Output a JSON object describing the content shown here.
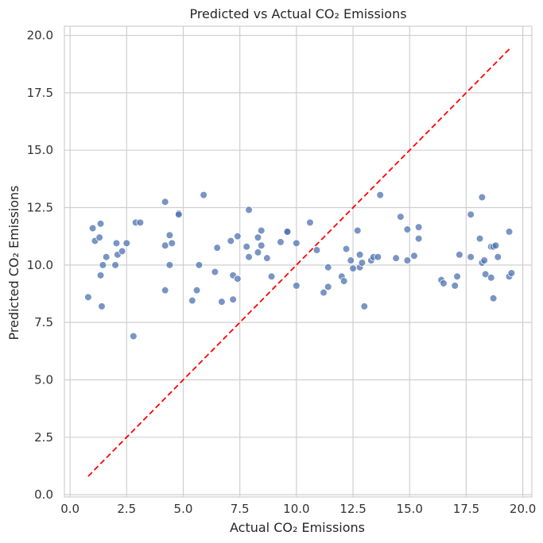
{
  "chart_data": {
    "type": "scatter",
    "title": "Predicted vs Actual CO₂ Emissions",
    "xlabel": "Actual CO₂ Emissions",
    "ylabel": "Predicted CO₂ Emissions",
    "xlim": [
      -0.25,
      20.4
    ],
    "ylim": [
      -0.1,
      20.4
    ],
    "xticks": [
      0.0,
      2.5,
      5.0,
      7.5,
      10.0,
      12.5,
      15.0,
      17.5,
      20.0
    ],
    "yticks": [
      0.0,
      2.5,
      5.0,
      7.5,
      10.0,
      12.5,
      15.0,
      17.5,
      20.0
    ],
    "xtick_labels": [
      "0.0",
      "2.5",
      "5.0",
      "7.5",
      "10.0",
      "12.5",
      "15.0",
      "17.5",
      "20.0"
    ],
    "ytick_labels": [
      "0.0",
      "2.5",
      "5.0",
      "7.5",
      "10.0",
      "12.5",
      "15.0",
      "17.5",
      "20.0"
    ],
    "grid": true,
    "point_color": "#4c72b0",
    "reference_line": {
      "x": [
        0.8,
        19.5
      ],
      "y": [
        0.8,
        19.5
      ],
      "color": "#ff0000",
      "style": "dashed"
    },
    "points": [
      {
        "x": 0.8,
        "y": 8.6
      },
      {
        "x": 1.0,
        "y": 11.6
      },
      {
        "x": 1.1,
        "y": 11.05
      },
      {
        "x": 1.3,
        "y": 11.2
      },
      {
        "x": 1.35,
        "y": 11.8
      },
      {
        "x": 1.35,
        "y": 9.55
      },
      {
        "x": 1.4,
        "y": 8.2
      },
      {
        "x": 1.45,
        "y": 10.0
      },
      {
        "x": 1.6,
        "y": 10.35
      },
      {
        "x": 2.0,
        "y": 10.0
      },
      {
        "x": 2.05,
        "y": 10.95
      },
      {
        "x": 2.1,
        "y": 10.45
      },
      {
        "x": 2.3,
        "y": 10.6
      },
      {
        "x": 2.5,
        "y": 10.95
      },
      {
        "x": 2.8,
        "y": 6.9
      },
      {
        "x": 2.9,
        "y": 11.85
      },
      {
        "x": 3.1,
        "y": 11.85
      },
      {
        "x": 4.2,
        "y": 12.75
      },
      {
        "x": 4.2,
        "y": 10.85
      },
      {
        "x": 4.2,
        "y": 8.9
      },
      {
        "x": 4.4,
        "y": 11.3
      },
      {
        "x": 4.4,
        "y": 10.0
      },
      {
        "x": 4.5,
        "y": 10.95
      },
      {
        "x": 4.8,
        "y": 12.25
      },
      {
        "x": 4.8,
        "y": 12.2
      },
      {
        "x": 5.4,
        "y": 8.45
      },
      {
        "x": 5.6,
        "y": 8.9
      },
      {
        "x": 5.7,
        "y": 10.0
      },
      {
        "x": 5.9,
        "y": 13.05
      },
      {
        "x": 6.4,
        "y": 9.7
      },
      {
        "x": 6.5,
        "y": 10.75
      },
      {
        "x": 6.7,
        "y": 8.4
      },
      {
        "x": 7.1,
        "y": 11.05
      },
      {
        "x": 7.2,
        "y": 9.55
      },
      {
        "x": 7.2,
        "y": 8.5
      },
      {
        "x": 7.4,
        "y": 11.25
      },
      {
        "x": 7.4,
        "y": 9.4
      },
      {
        "x": 7.8,
        "y": 10.8
      },
      {
        "x": 7.9,
        "y": 12.4
      },
      {
        "x": 7.9,
        "y": 10.35
      },
      {
        "x": 8.3,
        "y": 11.2
      },
      {
        "x": 8.3,
        "y": 10.55
      },
      {
        "x": 8.45,
        "y": 11.5
      },
      {
        "x": 8.45,
        "y": 10.85
      },
      {
        "x": 8.7,
        "y": 10.3
      },
      {
        "x": 8.9,
        "y": 9.5
      },
      {
        "x": 9.3,
        "y": 11.0
      },
      {
        "x": 9.6,
        "y": 11.45
      },
      {
        "x": 9.6,
        "y": 11.45
      },
      {
        "x": 10.0,
        "y": 10.95
      },
      {
        "x": 10.0,
        "y": 9.1
      },
      {
        "x": 10.6,
        "y": 11.85
      },
      {
        "x": 10.9,
        "y": 10.65
      },
      {
        "x": 11.2,
        "y": 8.8
      },
      {
        "x": 11.4,
        "y": 9.9
      },
      {
        "x": 11.4,
        "y": 9.05
      },
      {
        "x": 12.0,
        "y": 9.5
      },
      {
        "x": 12.1,
        "y": 9.3
      },
      {
        "x": 12.2,
        "y": 10.7
      },
      {
        "x": 12.4,
        "y": 10.2
      },
      {
        "x": 12.5,
        "y": 9.85
      },
      {
        "x": 12.7,
        "y": 11.5
      },
      {
        "x": 12.8,
        "y": 10.45
      },
      {
        "x": 12.8,
        "y": 9.9
      },
      {
        "x": 12.9,
        "y": 10.1
      },
      {
        "x": 13.0,
        "y": 8.2
      },
      {
        "x": 13.3,
        "y": 10.2
      },
      {
        "x": 13.4,
        "y": 10.35
      },
      {
        "x": 13.6,
        "y": 10.35
      },
      {
        "x": 13.7,
        "y": 13.05
      },
      {
        "x": 14.4,
        "y": 10.3
      },
      {
        "x": 14.6,
        "y": 12.1
      },
      {
        "x": 14.9,
        "y": 11.55
      },
      {
        "x": 14.9,
        "y": 10.2
      },
      {
        "x": 15.2,
        "y": 10.4
      },
      {
        "x": 15.4,
        "y": 11.65
      },
      {
        "x": 15.4,
        "y": 11.15
      },
      {
        "x": 16.4,
        "y": 9.35
      },
      {
        "x": 16.5,
        "y": 9.2
      },
      {
        "x": 17.0,
        "y": 9.1
      },
      {
        "x": 17.1,
        "y": 9.5
      },
      {
        "x": 17.2,
        "y": 10.45
      },
      {
        "x": 17.7,
        "y": 12.2
      },
      {
        "x": 17.7,
        "y": 10.35
      },
      {
        "x": 18.1,
        "y": 11.15
      },
      {
        "x": 18.2,
        "y": 12.95
      },
      {
        "x": 18.2,
        "y": 10.1
      },
      {
        "x": 18.3,
        "y": 10.2
      },
      {
        "x": 18.35,
        "y": 9.6
      },
      {
        "x": 18.6,
        "y": 10.8
      },
      {
        "x": 18.6,
        "y": 9.45
      },
      {
        "x": 18.7,
        "y": 10.8
      },
      {
        "x": 18.7,
        "y": 8.55
      },
      {
        "x": 18.8,
        "y": 10.85
      },
      {
        "x": 18.9,
        "y": 10.35
      },
      {
        "x": 19.4,
        "y": 11.45
      },
      {
        "x": 19.4,
        "y": 9.5
      },
      {
        "x": 19.5,
        "y": 9.65
      }
    ]
  }
}
